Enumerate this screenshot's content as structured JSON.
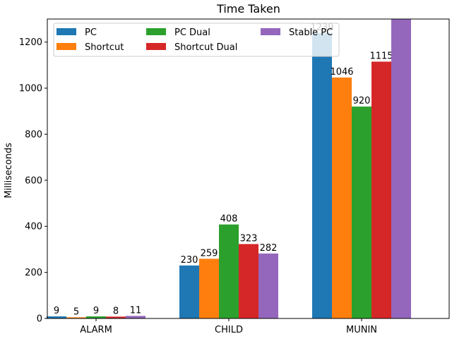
{
  "chart_data": {
    "type": "bar",
    "title": "Time Taken",
    "xlabel": "",
    "ylabel": "Milliseconds",
    "categories": [
      "ALARM",
      "CHILD",
      "MUNIN"
    ],
    "series": [
      {
        "name": "PC",
        "color": "#1f77b4",
        "values": [
          9,
          230,
          1239
        ]
      },
      {
        "name": "Shortcut",
        "color": "#ff7f0e",
        "values": [
          5,
          259,
          1046
        ]
      },
      {
        "name": "PC Dual",
        "color": "#2ca02c",
        "values": [
          9,
          408,
          920
        ]
      },
      {
        "name": "Shortcut Dual",
        "color": "#d62728",
        "values": [
          8,
          323,
          1115
        ]
      },
      {
        "name": "Stable PC",
        "color": "#9467bd",
        "values": [
          11,
          282,
          1300
        ]
      }
    ],
    "bar_labels": [
      [
        "9",
        "230",
        "1239"
      ],
      [
        "5",
        "259",
        "1046"
      ],
      [
        "9",
        "408",
        "920"
      ],
      [
        "8",
        "323",
        "1115"
      ],
      [
        "11",
        "282",
        ""
      ]
    ],
    "ylim": [
      0,
      1300
    ],
    "yticks": [
      0,
      200,
      400,
      600,
      800,
      1000,
      1200
    ],
    "legend": {
      "position": "top-left",
      "columns": 3
    },
    "grid": false
  }
}
